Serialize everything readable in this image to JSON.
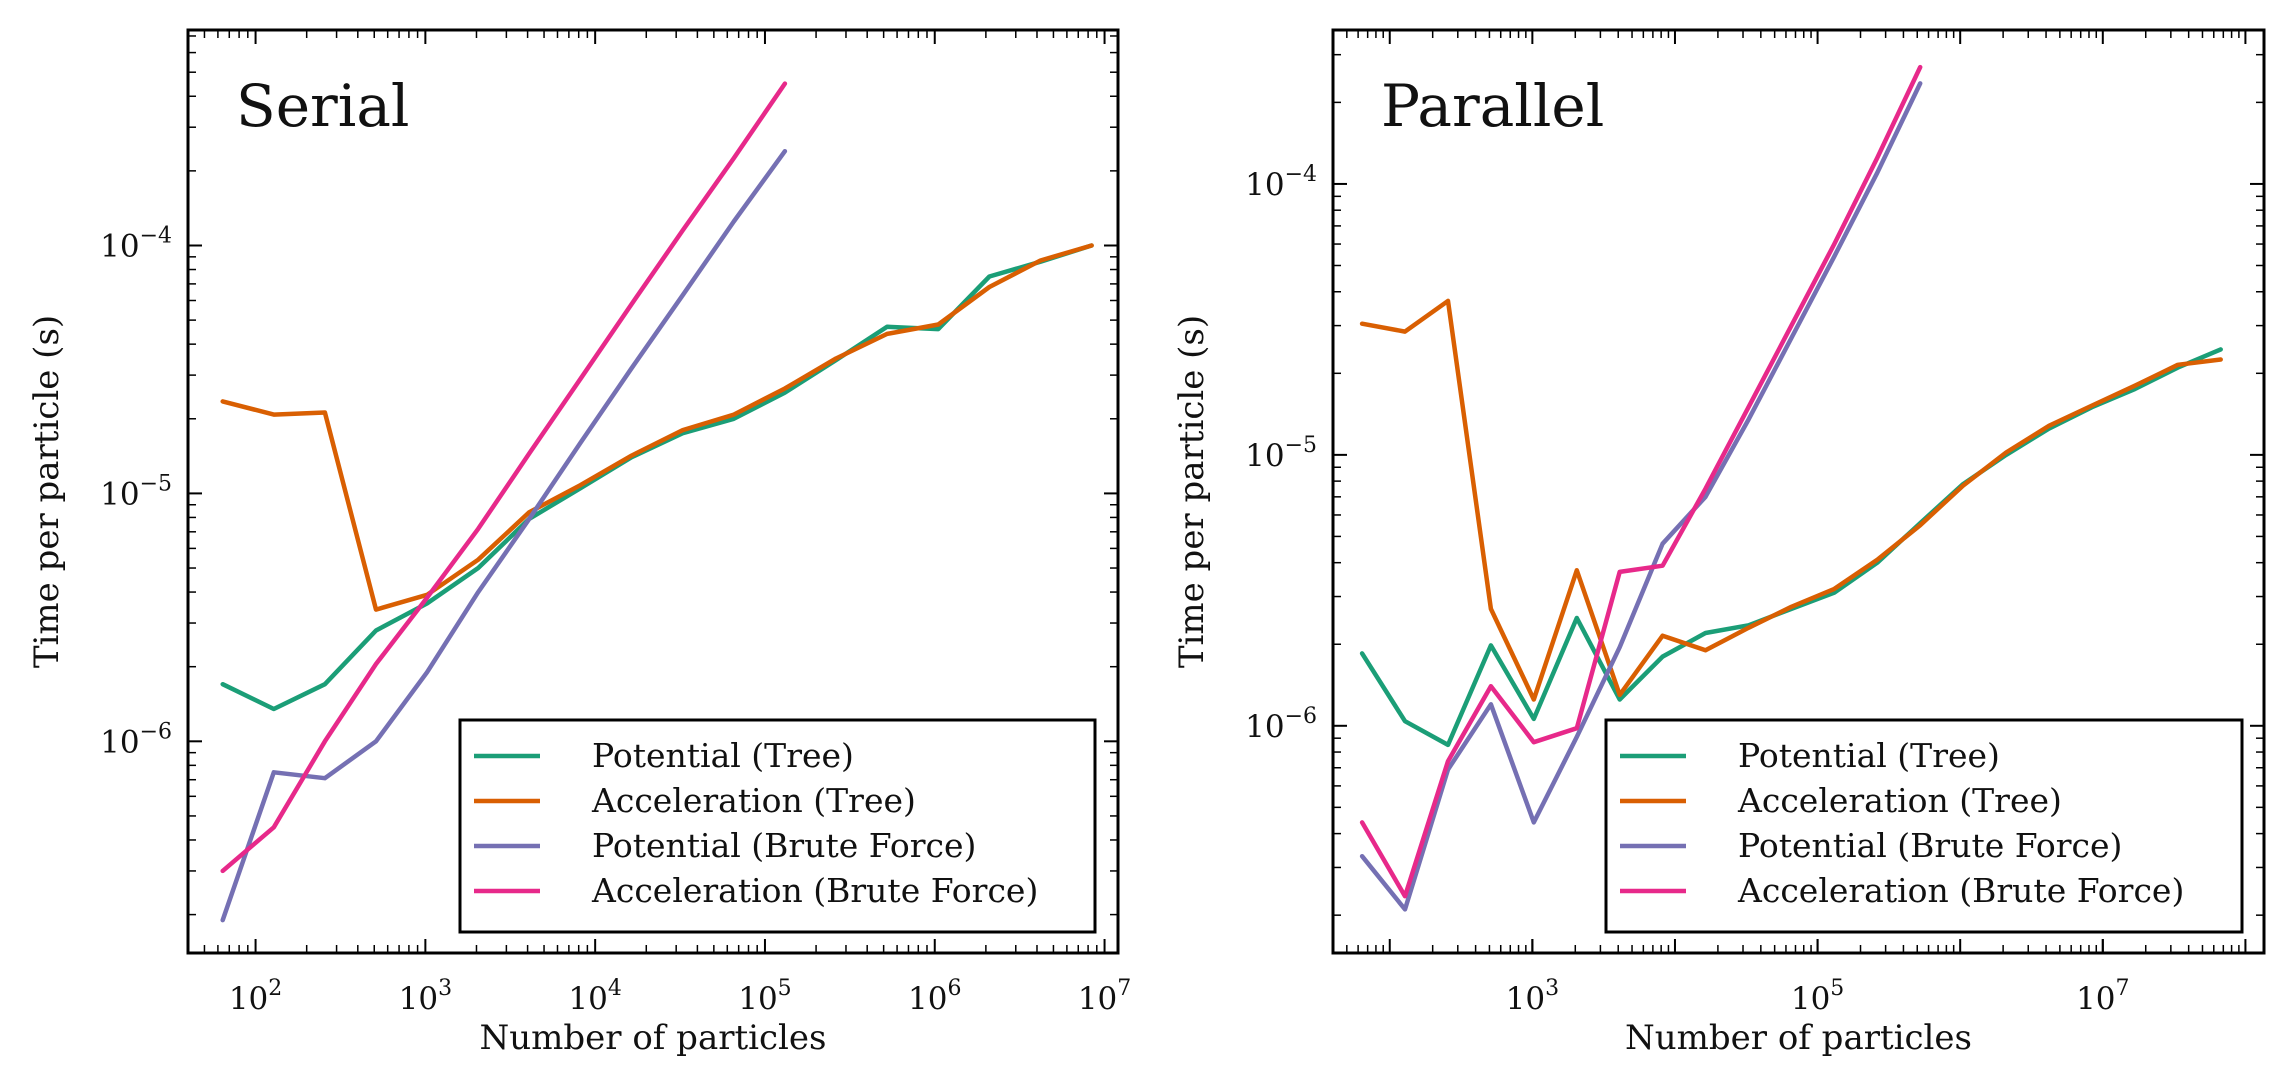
{
  "chart_data": [
    {
      "type": "line",
      "title": "Serial",
      "xlabel": "Number of particles",
      "ylabel": "Time per particle (s)",
      "xscale": "log",
      "yscale": "log",
      "xlim": [
        40,
        12000000
      ],
      "ylim": [
        1.4e-07,
        0.00074
      ],
      "xticks": [
        {
          "value": 100,
          "base": "10",
          "exp": "2"
        },
        {
          "value": 1000,
          "base": "10",
          "exp": "3"
        },
        {
          "value": 10000,
          "base": "10",
          "exp": "4"
        },
        {
          "value": 100000,
          "base": "10",
          "exp": "5"
        },
        {
          "value": 1000000,
          "base": "10",
          "exp": "6"
        },
        {
          "value": 10000000,
          "base": "10",
          "exp": "7"
        }
      ],
      "yticks": [
        {
          "value": 1e-06,
          "base": "10",
          "exp": "−6"
        },
        {
          "value": 1e-05,
          "base": "10",
          "exp": "−5"
        },
        {
          "value": 0.0001,
          "base": "10",
          "exp": "−4"
        }
      ],
      "legend_position": "lower right",
      "grid": false,
      "series": [
        {
          "name": "Potential (Tree)",
          "color": "#1b9e77",
          "x": [
            64,
            128,
            256,
            512,
            1024,
            2048,
            4096,
            8192,
            16384,
            32768,
            65536,
            131072,
            262144,
            524288,
            1048576,
            2097152,
            4194304,
            8388608
          ],
          "y": [
            1.7e-06,
            1.35e-06,
            1.7e-06,
            2.8e-06,
            3.6e-06,
            5e-06,
            7.9e-06,
            1.05e-05,
            1.4e-05,
            1.75e-05,
            2e-05,
            2.55e-05,
            3.45e-05,
            4.7e-05,
            4.6e-05,
            7.5e-05,
            8.6e-05,
            0.0001
          ]
        },
        {
          "name": "Acceleration (Tree)",
          "color": "#d95f02",
          "x": [
            64,
            128,
            256,
            512,
            1024,
            2048,
            4096,
            8192,
            16384,
            32768,
            65536,
            131072,
            262144,
            524288,
            1048576,
            2097152,
            4194304,
            8388608
          ],
          "y": [
            2.35e-05,
            2.08e-05,
            2.12e-05,
            3.4e-06,
            3.9e-06,
            5.4e-06,
            8.4e-06,
            1.08e-05,
            1.42e-05,
            1.8e-05,
            2.08e-05,
            2.65e-05,
            3.5e-05,
            4.4e-05,
            4.8e-05,
            6.8e-05,
            8.7e-05,
            0.0001
          ]
        },
        {
          "name": "Potential (Brute Force)",
          "color": "#7570b3",
          "x": [
            64,
            128,
            256,
            512,
            1024,
            2048,
            4096,
            8192,
            16384,
            32768,
            65536,
            131072
          ],
          "y": [
            1.9e-07,
            7.5e-07,
            7.1e-07,
            1e-06,
            1.9e-06,
            4e-06,
            7.9e-06,
            1.6e-05,
            3.2e-05,
            6.3e-05,
            0.000125,
            0.00024
          ]
        },
        {
          "name": "Acceleration (Brute Force)",
          "color": "#e7298a",
          "x": [
            64,
            128,
            256,
            512,
            1024,
            2048,
            4096,
            8192,
            16384,
            32768,
            65536,
            131072
          ],
          "y": [
            3e-07,
            4.5e-07,
            1e-06,
            2.05e-06,
            3.8e-06,
            7.2e-06,
            1.45e-05,
            2.9e-05,
            5.8e-05,
            0.000115,
            0.000225,
            0.00045
          ]
        }
      ]
    },
    {
      "type": "line",
      "title": "Parallel",
      "xlabel": "Number of particles",
      "ylabel": "Time per particle (s)",
      "xscale": "log",
      "yscale": "log",
      "xlim": [
        40,
        135000000
      ],
      "ylim": [
        1.45e-07,
        0.00037
      ],
      "xticks": [
        {
          "value": 1000,
          "base": "10",
          "exp": "3"
        },
        {
          "value": 100000,
          "base": "10",
          "exp": "5"
        },
        {
          "value": 10000000,
          "base": "10",
          "exp": "7"
        }
      ],
      "yticks": [
        {
          "value": 1e-06,
          "base": "10",
          "exp": "−6"
        },
        {
          "value": 1e-05,
          "base": "10",
          "exp": "−5"
        },
        {
          "value": 0.0001,
          "base": "10",
          "exp": "−4"
        }
      ],
      "legend_position": "lower right",
      "grid": false,
      "series": [
        {
          "name": "Potential (Tree)",
          "color": "#1b9e77",
          "x": [
            64,
            128,
            256,
            512,
            1024,
            2048,
            4096,
            8192,
            16384,
            32768,
            65536,
            131072,
            262144,
            524288,
            1048576,
            2097152,
            4194304,
            8388608,
            16777216,
            33554432,
            67108864
          ],
          "y": [
            1.85e-06,
            1.04e-06,
            8.5e-07,
            1.98e-06,
            1.06e-06,
            2.5e-06,
            1.25e-06,
            1.8e-06,
            2.2e-06,
            2.35e-06,
            2.7e-06,
            3.1e-06,
            4e-06,
            5.6e-06,
            7.8e-06,
            1e-05,
            1.25e-05,
            1.5e-05,
            1.75e-05,
            2.1e-05,
            2.45e-05
          ]
        },
        {
          "name": "Acceleration (Tree)",
          "color": "#d95f02",
          "x": [
            64,
            128,
            256,
            512,
            1024,
            2048,
            4096,
            8192,
            16384,
            32768,
            65536,
            131072,
            262144,
            524288,
            1048576,
            2097152,
            4194304,
            8388608,
            16777216,
            33554432,
            67108864
          ],
          "y": [
            3.05e-05,
            2.85e-05,
            3.7e-05,
            2.7e-06,
            1.25e-06,
            3.75e-06,
            1.3e-06,
            2.15e-06,
            1.9e-06,
            2.3e-06,
            2.75e-06,
            3.2e-06,
            4.1e-06,
            5.5e-06,
            7.7e-06,
            1.02e-05,
            1.28e-05,
            1.52e-05,
            1.8e-05,
            2.15e-05,
            2.25e-05
          ]
        },
        {
          "name": "Potential (Brute Force)",
          "color": "#7570b3",
          "x": [
            64,
            128,
            256,
            512,
            1024,
            2048,
            4096,
            8192,
            16384,
            32768,
            65536,
            131072,
            262144,
            524288
          ],
          "y": [
            3.3e-07,
            2.1e-07,
            6.9e-07,
            1.2e-06,
            4.4e-07,
            9.1e-07,
            1.95e-06,
            4.7e-06,
            7e-06,
            1.35e-05,
            2.7e-05,
            5.4e-05,
            0.00011,
            0.000235
          ]
        },
        {
          "name": "Acceleration (Brute Force)",
          "color": "#e7298a",
          "x": [
            64,
            128,
            256,
            512,
            1024,
            2048,
            4096,
            8192,
            16384,
            32768,
            65536,
            131072,
            262144,
            524288
          ],
          "y": [
            4.4e-07,
            2.35e-07,
            7.4e-07,
            1.4e-06,
            8.7e-07,
            9.8e-07,
            3.7e-06,
            3.9e-06,
            7.5e-06,
            1.5e-05,
            3e-05,
            6e-05,
            0.000125,
            0.00027
          ]
        }
      ]
    }
  ]
}
